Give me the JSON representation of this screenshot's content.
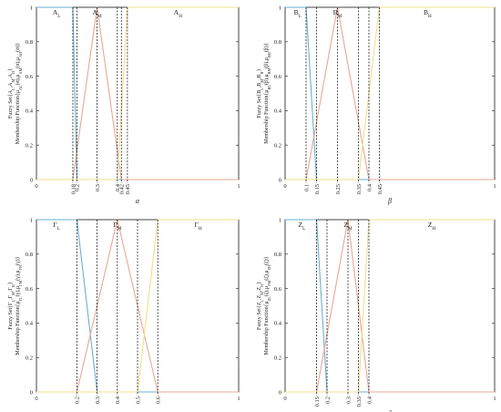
{
  "chart_data": [
    {
      "type": "line",
      "xlabel": "α",
      "ylabel": "Fuzzy Set{A_L,A_M,A_H} Membership Function{μ_{A_L}(α),μ_{A_M}(α),μ_{A_H}(α)}",
      "xlim": [
        0,
        1
      ],
      "ylim": [
        0,
        1
      ],
      "xticks": [
        0,
        1
      ],
      "yticks": [
        0,
        0.2,
        0.4,
        0.6,
        0.8,
        1
      ],
      "guide_ticks": [
        0.18,
        0.2,
        0.3,
        0.4,
        0.42,
        0.45
      ],
      "guide_tick_labels": [
        "0.18",
        "0.2",
        "0.3",
        "0.4",
        "0.42",
        "0.45"
      ],
      "set_labels": [
        {
          "base": "A",
          "sub": "L",
          "x": 0.1
        },
        {
          "base": "A",
          "sub": "M",
          "x": 0.3
        },
        {
          "base": "A",
          "sub": "H",
          "x": 0.7
        }
      ],
      "series": [
        {
          "color": "#6ab0d2",
          "x": [
            0,
            0.18,
            0.2,
            0.2,
            1
          ],
          "y": [
            1,
            1,
            0,
            0,
            0
          ]
        },
        {
          "color": "#e8a896",
          "x": [
            0,
            0.18,
            0.3,
            0.42,
            1
          ],
          "y": [
            0,
            0,
            1,
            0,
            0
          ]
        },
        {
          "color": "#f0e08c",
          "x": [
            0,
            0.4,
            0.45,
            1
          ],
          "y": [
            0,
            0,
            1,
            1
          ]
        }
      ]
    },
    {
      "type": "line",
      "xlabel": "β",
      "ylabel": "Fuzzy Set{B_L,B_M,B_H} Membership Function{μ_{B_L}(β),μ_{B_M}(β),μ_{B_H}(β)}",
      "xlim": [
        0,
        1
      ],
      "ylim": [
        0,
        1
      ],
      "xticks": [
        0,
        1
      ],
      "yticks": [
        0,
        0.2,
        0.4,
        0.6,
        0.8,
        1
      ],
      "guide_ticks": [
        0.1,
        0.15,
        0.25,
        0.35,
        0.4,
        0.45
      ],
      "guide_tick_labels": [
        "0.1",
        "0.15",
        "0.25",
        "0.35",
        "0.4",
        "0.45"
      ],
      "set_labels": [
        {
          "base": "B",
          "sub": "L",
          "x": 0.06
        },
        {
          "base": "B",
          "sub": "M",
          "x": 0.25
        },
        {
          "base": "B",
          "sub": "H",
          "x": 0.68
        }
      ],
      "series": [
        {
          "color": "#6ab0d2",
          "x": [
            0,
            0.1,
            0.15,
            1
          ],
          "y": [
            1,
            1,
            0,
            0
          ]
        },
        {
          "color": "#e8a896",
          "x": [
            0,
            0.1,
            0.25,
            0.4,
            1
          ],
          "y": [
            0,
            0,
            1,
            0,
            0
          ]
        },
        {
          "color": "#f0e08c",
          "x": [
            0,
            0.35,
            0.45,
            1
          ],
          "y": [
            0,
            0,
            1,
            1
          ]
        }
      ]
    },
    {
      "type": "line",
      "xlabel": "γ",
      "ylabel": "Fuzzy Set{Γ_L,Γ_M,Γ_H} Membership Function{μ_{Γ_L}(γ),μ_{Γ_M}(γ),μ_{Γ_H}(γ)}",
      "xlim": [
        0,
        1
      ],
      "ylim": [
        0,
        1
      ],
      "xticks": [
        0,
        1
      ],
      "yticks": [
        0,
        0.2,
        0.4,
        0.6,
        0.8,
        1
      ],
      "guide_ticks": [
        0.2,
        0.3,
        0.4,
        0.5,
        0.6
      ],
      "guide_tick_labels": [
        "0.2",
        "0.3",
        "0.4",
        "0.5",
        "0.6"
      ],
      "set_labels": [
        {
          "base": "Γ",
          "sub": "L",
          "x": 0.1
        },
        {
          "base": "Γ",
          "sub": "M",
          "x": 0.4
        },
        {
          "base": "Γ",
          "sub": "H",
          "x": 0.8
        }
      ],
      "series": [
        {
          "color": "#6ab0d2",
          "x": [
            0,
            0.2,
            0.3,
            1
          ],
          "y": [
            1,
            1,
            0,
            0
          ]
        },
        {
          "color": "#e8a896",
          "x": [
            0,
            0.2,
            0.4,
            0.6,
            1
          ],
          "y": [
            0,
            0,
            1,
            0,
            0
          ]
        },
        {
          "color": "#f0e08c",
          "x": [
            0,
            0.5,
            0.6,
            1
          ],
          "y": [
            0,
            0,
            1,
            1
          ]
        }
      ]
    },
    {
      "type": "line",
      "xlabel": "ζ",
      "ylabel": "Fuzzy Set{Z_L,Z_M,Z_H} Membership Function{μ_{Z_L}(ζ),μ_{Z_M}(ζ),μ_{Z_H}(ζ)}",
      "xlim": [
        0,
        1
      ],
      "ylim": [
        0,
        1
      ],
      "xticks": [
        0,
        1
      ],
      "yticks": [
        0,
        0.2,
        0.4,
        0.6,
        0.8,
        1
      ],
      "guide_ticks": [
        0.15,
        0.2,
        0.3,
        0.35,
        0.4
      ],
      "guide_tick_labels": [
        "0.15",
        "0.2",
        "0.3",
        "0.35",
        "0.4"
      ],
      "set_labels": [
        {
          "base": "Z",
          "sub": "L",
          "x": 0.08
        },
        {
          "base": "Z",
          "sub": "M",
          "x": 0.3
        },
        {
          "base": "Z",
          "sub": "H",
          "x": 0.7
        }
      ],
      "series": [
        {
          "color": "#6ab0d2",
          "x": [
            0,
            0.15,
            0.2,
            1
          ],
          "y": [
            1,
            1,
            0,
            0
          ]
        },
        {
          "color": "#e8a896",
          "x": [
            0,
            0.15,
            0.3,
            0.4,
            1
          ],
          "y": [
            0,
            0,
            1,
            0,
            0
          ]
        },
        {
          "color": "#f0e08c",
          "x": [
            0,
            0.35,
            0.4,
            1
          ],
          "y": [
            0,
            0,
            1,
            1
          ]
        }
      ]
    }
  ]
}
